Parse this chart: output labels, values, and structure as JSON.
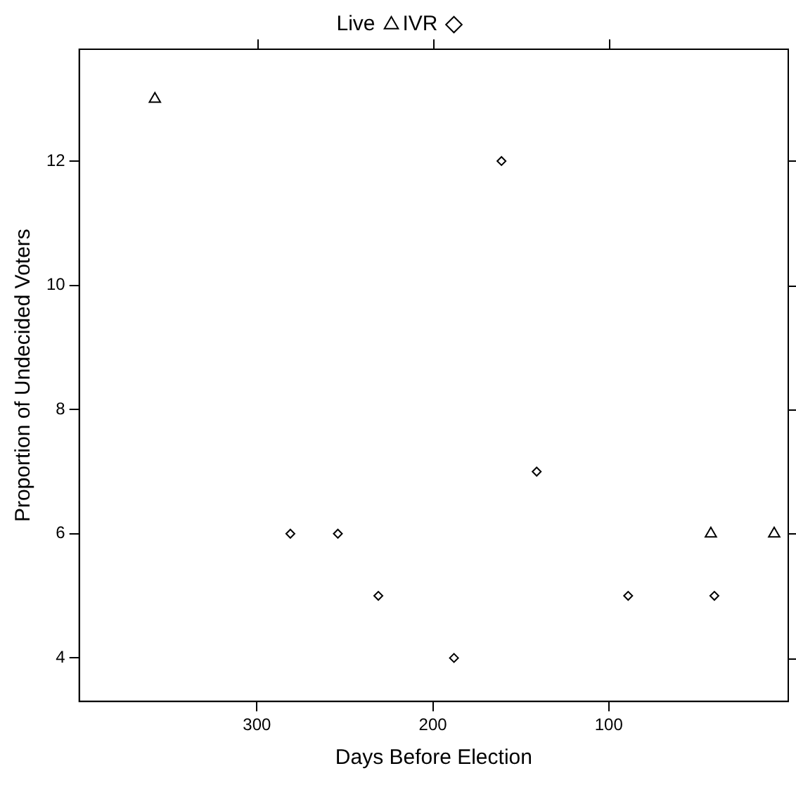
{
  "chart_data": {
    "type": "scatter",
    "xlabel": "Days Before Election",
    "ylabel": "Proportion of Undecided Voters",
    "xlim": [
      401,
      -2
    ],
    "xticks": [
      300,
      200,
      100
    ],
    "ylim": [
      3.3,
      13.8
    ],
    "yticks": [
      4,
      6,
      8,
      10,
      12
    ],
    "grid": false,
    "legend": "top",
    "series": [
      {
        "name": "IVR",
        "color": "#000000",
        "marker": "diamond",
        "x": [
          281,
          254,
          231,
          188,
          161,
          141,
          89,
          40
        ],
        "values": [
          6,
          6,
          5,
          4,
          12,
          7,
          5,
          5
        ]
      },
      {
        "name": "Live",
        "color": "#000000",
        "marker": "triangle",
        "x": [
          358,
          42,
          6
        ],
        "values": [
          13,
          6,
          6
        ]
      }
    ]
  }
}
